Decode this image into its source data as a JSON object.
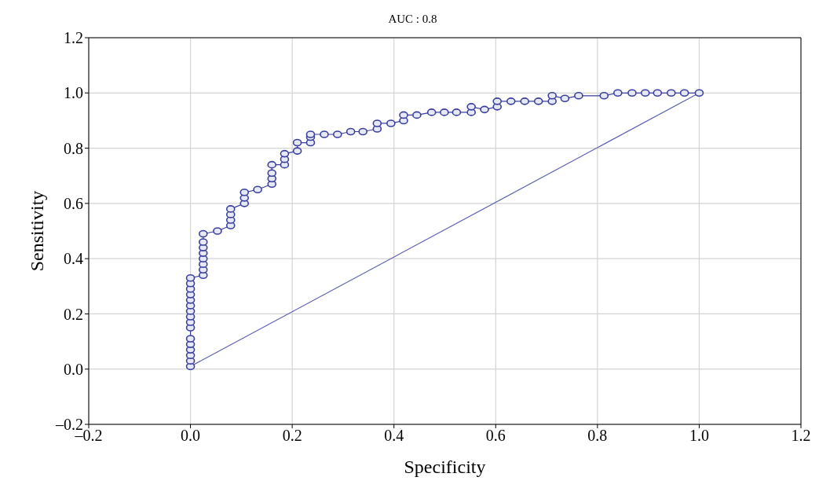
{
  "chart_data": {
    "type": "line",
    "title": "AUC : 0.8",
    "xlabel": "Specificity",
    "ylabel": "Sensitivity",
    "xlim": [
      -0.2,
      1.2
    ],
    "ylim": [
      -0.2,
      1.2
    ],
    "xticks": [
      {
        "value": -0.2,
        "label": "–0.2"
      },
      {
        "value": 0,
        "label": "0.0"
      },
      {
        "value": 0.2,
        "label": "0.2"
      },
      {
        "value": 0.4,
        "label": "0.4"
      },
      {
        "value": 0.6,
        "label": "0.6"
      },
      {
        "value": 0.8,
        "label": "0.8"
      },
      {
        "value": 1,
        "label": "1.0"
      },
      {
        "value": 1.2,
        "label": "1.2"
      }
    ],
    "yticks": [
      {
        "value": -0.2,
        "label": "–0.2"
      },
      {
        "value": 0,
        "label": "0.0"
      },
      {
        "value": 0.2,
        "label": "0.2"
      },
      {
        "value": 0.4,
        "label": "0.4"
      },
      {
        "value": 0.6,
        "label": "0.6"
      },
      {
        "value": 0.8,
        "label": "0.8"
      },
      {
        "value": 1,
        "label": "1.0"
      },
      {
        "value": 1.2,
        "label": "1.2"
      }
    ],
    "grid": true,
    "marker": "circle",
    "series": [
      {
        "color": "#3a3f9e",
        "x": [
          0,
          0,
          0,
          0,
          0,
          0,
          0,
          0,
          0,
          0,
          0,
          0,
          0,
          0,
          0,
          0,
          0.025,
          0.025,
          0.025,
          0.025,
          0.025,
          0.025,
          0.025,
          0.025,
          0.053,
          0.079,
          0.079,
          0.079,
          0.079,
          0.106,
          0.106,
          0.106,
          0.132,
          0.16,
          0.16,
          0.16,
          0.16,
          0.185,
          0.185,
          0.185,
          0.21,
          0.21,
          0.236,
          0.236,
          0.236,
          0.263,
          0.289,
          0.315,
          0.339,
          0.367,
          0.367,
          0.394,
          0.419,
          0.419,
          0.445,
          0.474,
          0.499,
          0.523,
          0.552,
          0.552,
          0.578,
          0.603,
          0.603,
          0.63,
          0.657,
          0.684,
          0.711,
          0.711,
          0.736,
          0.763,
          0.813,
          0.84,
          0.868,
          0.894,
          0.918,
          0.945,
          0.971,
          1
        ],
        "values": [
          0.01,
          0.03,
          0.05,
          0.07,
          0.09,
          0.11,
          0.15,
          0.17,
          0.19,
          0.21,
          0.23,
          0.25,
          0.27,
          0.29,
          0.31,
          0.33,
          0.34,
          0.36,
          0.38,
          0.4,
          0.42,
          0.44,
          0.46,
          0.49,
          0.5,
          0.52,
          0.54,
          0.56,
          0.58,
          0.6,
          0.62,
          0.64,
          0.65,
          0.67,
          0.69,
          0.71,
          0.74,
          0.74,
          0.76,
          0.78,
          0.79,
          0.82,
          0.82,
          0.84,
          0.85,
          0.85,
          0.85,
          0.86,
          0.86,
          0.87,
          0.89,
          0.89,
          0.9,
          0.92,
          0.92,
          0.93,
          0.93,
          0.93,
          0.93,
          0.95,
          0.94,
          0.95,
          0.97,
          0.97,
          0.97,
          0.97,
          0.97,
          0.99,
          0.98,
          0.99,
          0.99,
          1,
          1,
          1,
          1,
          1,
          1,
          1
        ]
      },
      {
        "color": "#5a5fb0",
        "marker": "none",
        "x": [
          0,
          1
        ],
        "values": [
          0.01,
          1
        ]
      }
    ]
  }
}
